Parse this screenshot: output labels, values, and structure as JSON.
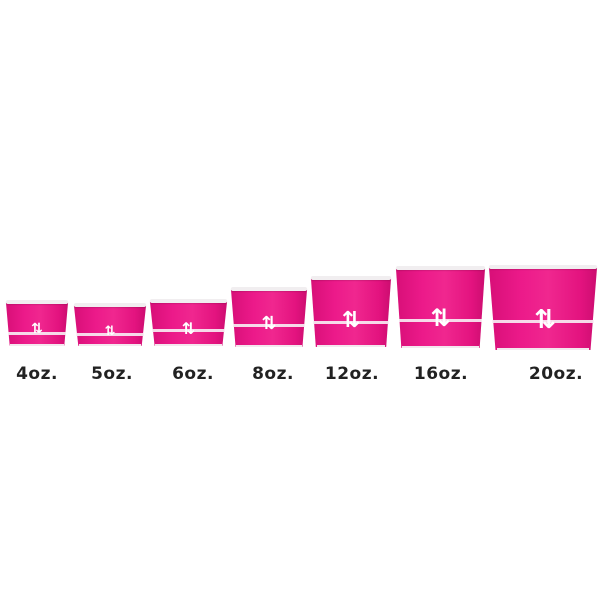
{
  "product": {
    "color": "#e8177f",
    "sizes": [
      {
        "label": "4oz."
      },
      {
        "label": "5oz."
      },
      {
        "label": "6oz."
      },
      {
        "label": "8oz."
      },
      {
        "label": "12oz."
      },
      {
        "label": "16oz."
      },
      {
        "label": "20oz."
      }
    ]
  }
}
